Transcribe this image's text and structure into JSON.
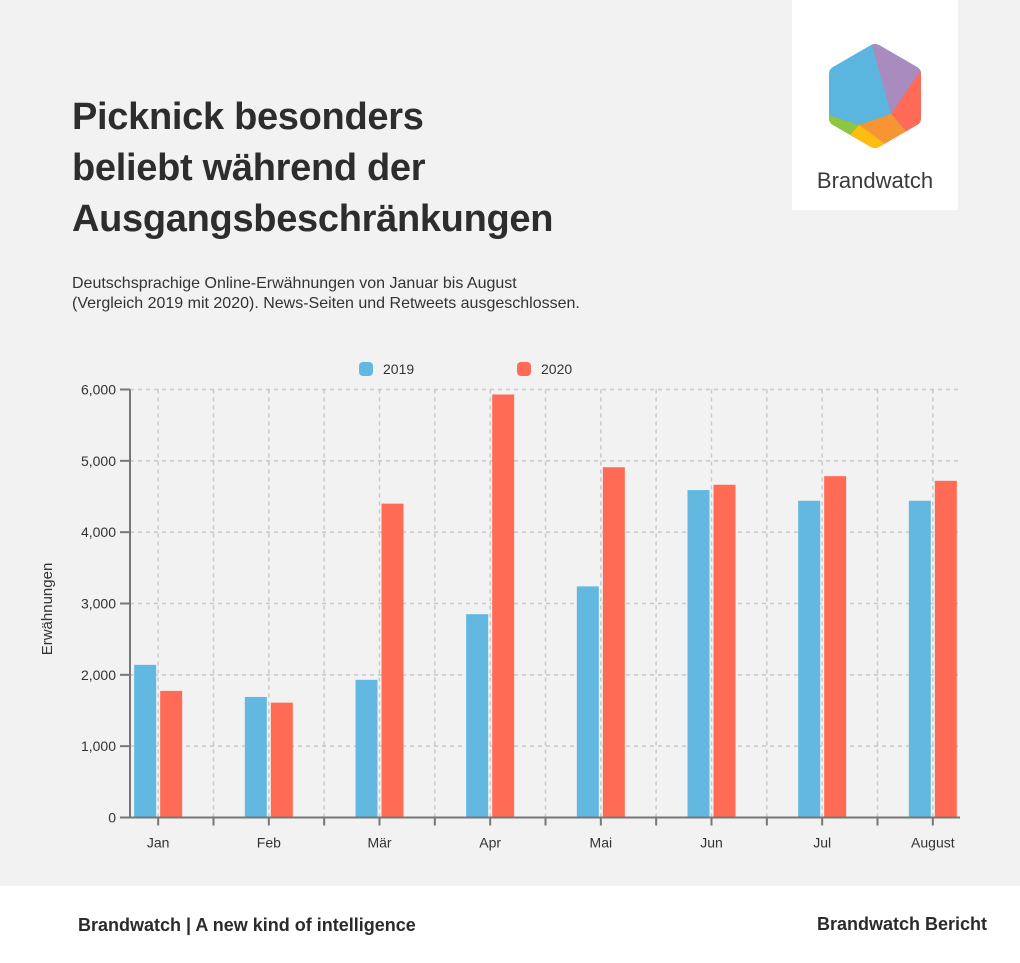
{
  "header": {
    "title_lines": [
      "Picknick besonders",
      "beliebt während der",
      "Ausgangsbeschränkungen"
    ],
    "subtitle_lines": [
      "Deutschsprachige Online-Erwähnungen von Januar bis August",
      "(Vergleich 2019 mit 2020). News-Seiten und Retweets ausgeschlossen."
    ]
  },
  "logo": {
    "icon": "brandwatch-hexagon-logo-icon",
    "text": "Brandwatch"
  },
  "footer": {
    "left": "Brandwatch | A new kind of intelligence",
    "right": "Brandwatch Bericht"
  },
  "colors": {
    "series_2019": "#62b8e0",
    "series_2020": "#ff6b55",
    "grid": "#c8c8c8",
    "axis": "#777777"
  },
  "chart_data": {
    "type": "bar",
    "title": "",
    "xlabel": "",
    "ylabel": "Erwähnungen",
    "categories": [
      "Jan",
      "Feb",
      "Mär",
      "Apr",
      "Mai",
      "Jun",
      "Jul",
      "August"
    ],
    "series": [
      {
        "name": "2019",
        "color": "#62b8e0",
        "values": [
          2140,
          1690,
          1930,
          2850,
          3240,
          4590,
          4440,
          4440
        ]
      },
      {
        "name": "2020",
        "color": "#ff6b55",
        "values": [
          1775,
          1610,
          4400,
          5930,
          4910,
          4665,
          4785,
          4720
        ]
      }
    ],
    "ylim": [
      0,
      6000
    ],
    "yticks": [
      0,
      1000,
      2000,
      3000,
      4000,
      5000,
      6000
    ],
    "ytick_labels": [
      "0",
      "1,000",
      "2,000",
      "3,000",
      "4,000",
      "5,000",
      "6,000"
    ],
    "grid": true,
    "legend_position": "top-center"
  }
}
